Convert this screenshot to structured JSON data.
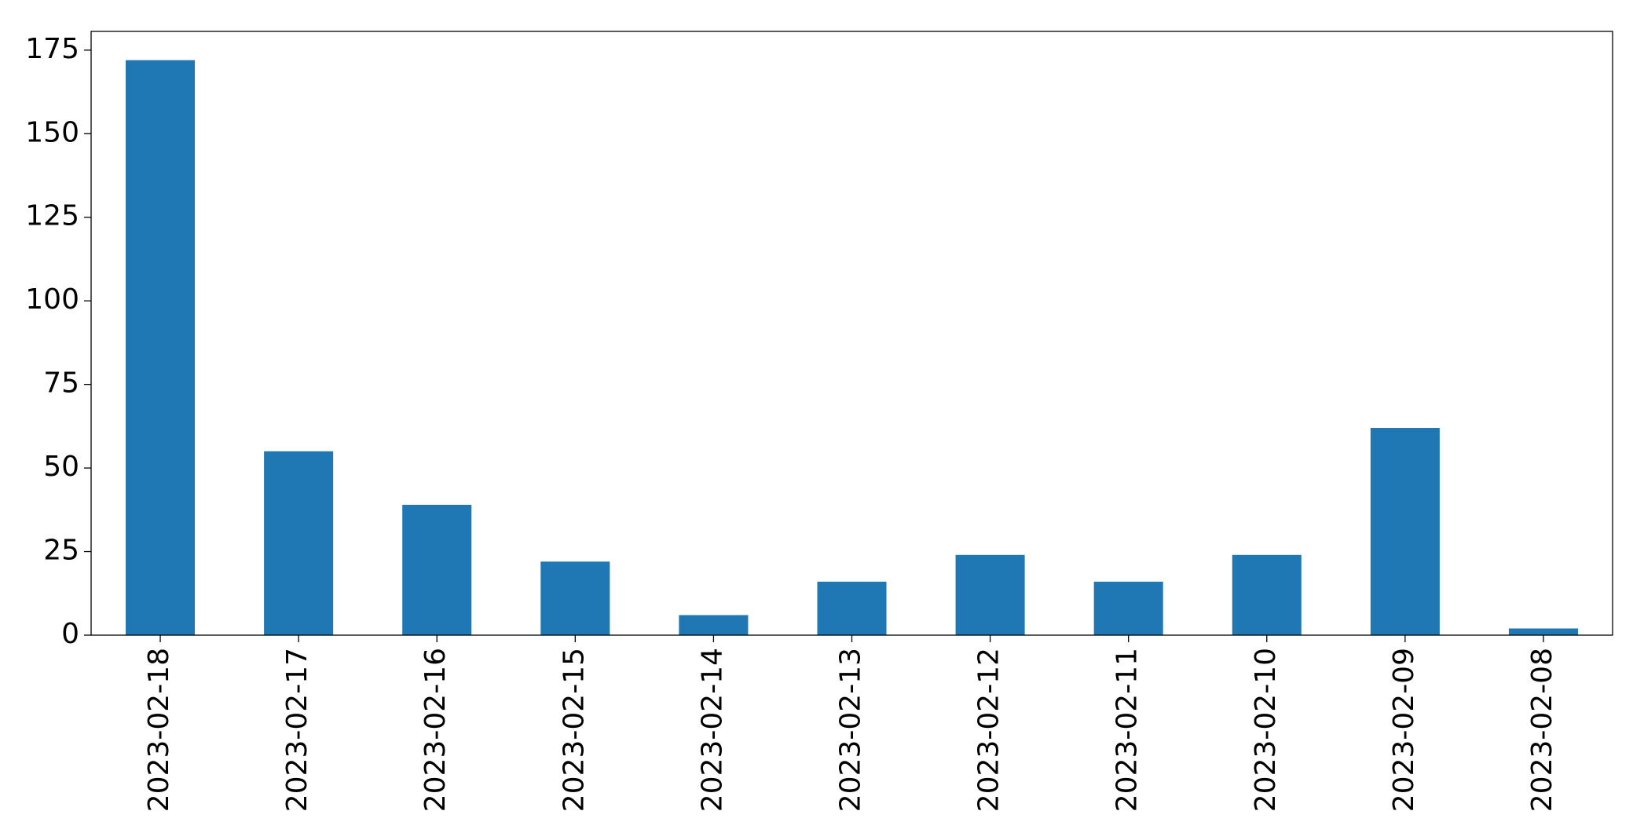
{
  "chart_data": {
    "type": "bar",
    "categories": [
      "2023-02-18",
      "2023-02-17",
      "2023-02-16",
      "2023-02-15",
      "2023-02-14",
      "2023-02-13",
      "2023-02-12",
      "2023-02-11",
      "2023-02-10",
      "2023-02-09",
      "2023-02-08"
    ],
    "values": [
      172,
      55,
      39,
      22,
      6,
      16,
      24,
      16,
      24,
      62,
      2
    ],
    "color": "#1f77b4",
    "ylim": [
      0,
      180.6
    ],
    "yticks": [
      0,
      25,
      50,
      75,
      100,
      125,
      150,
      175
    ],
    "grid": false
  }
}
